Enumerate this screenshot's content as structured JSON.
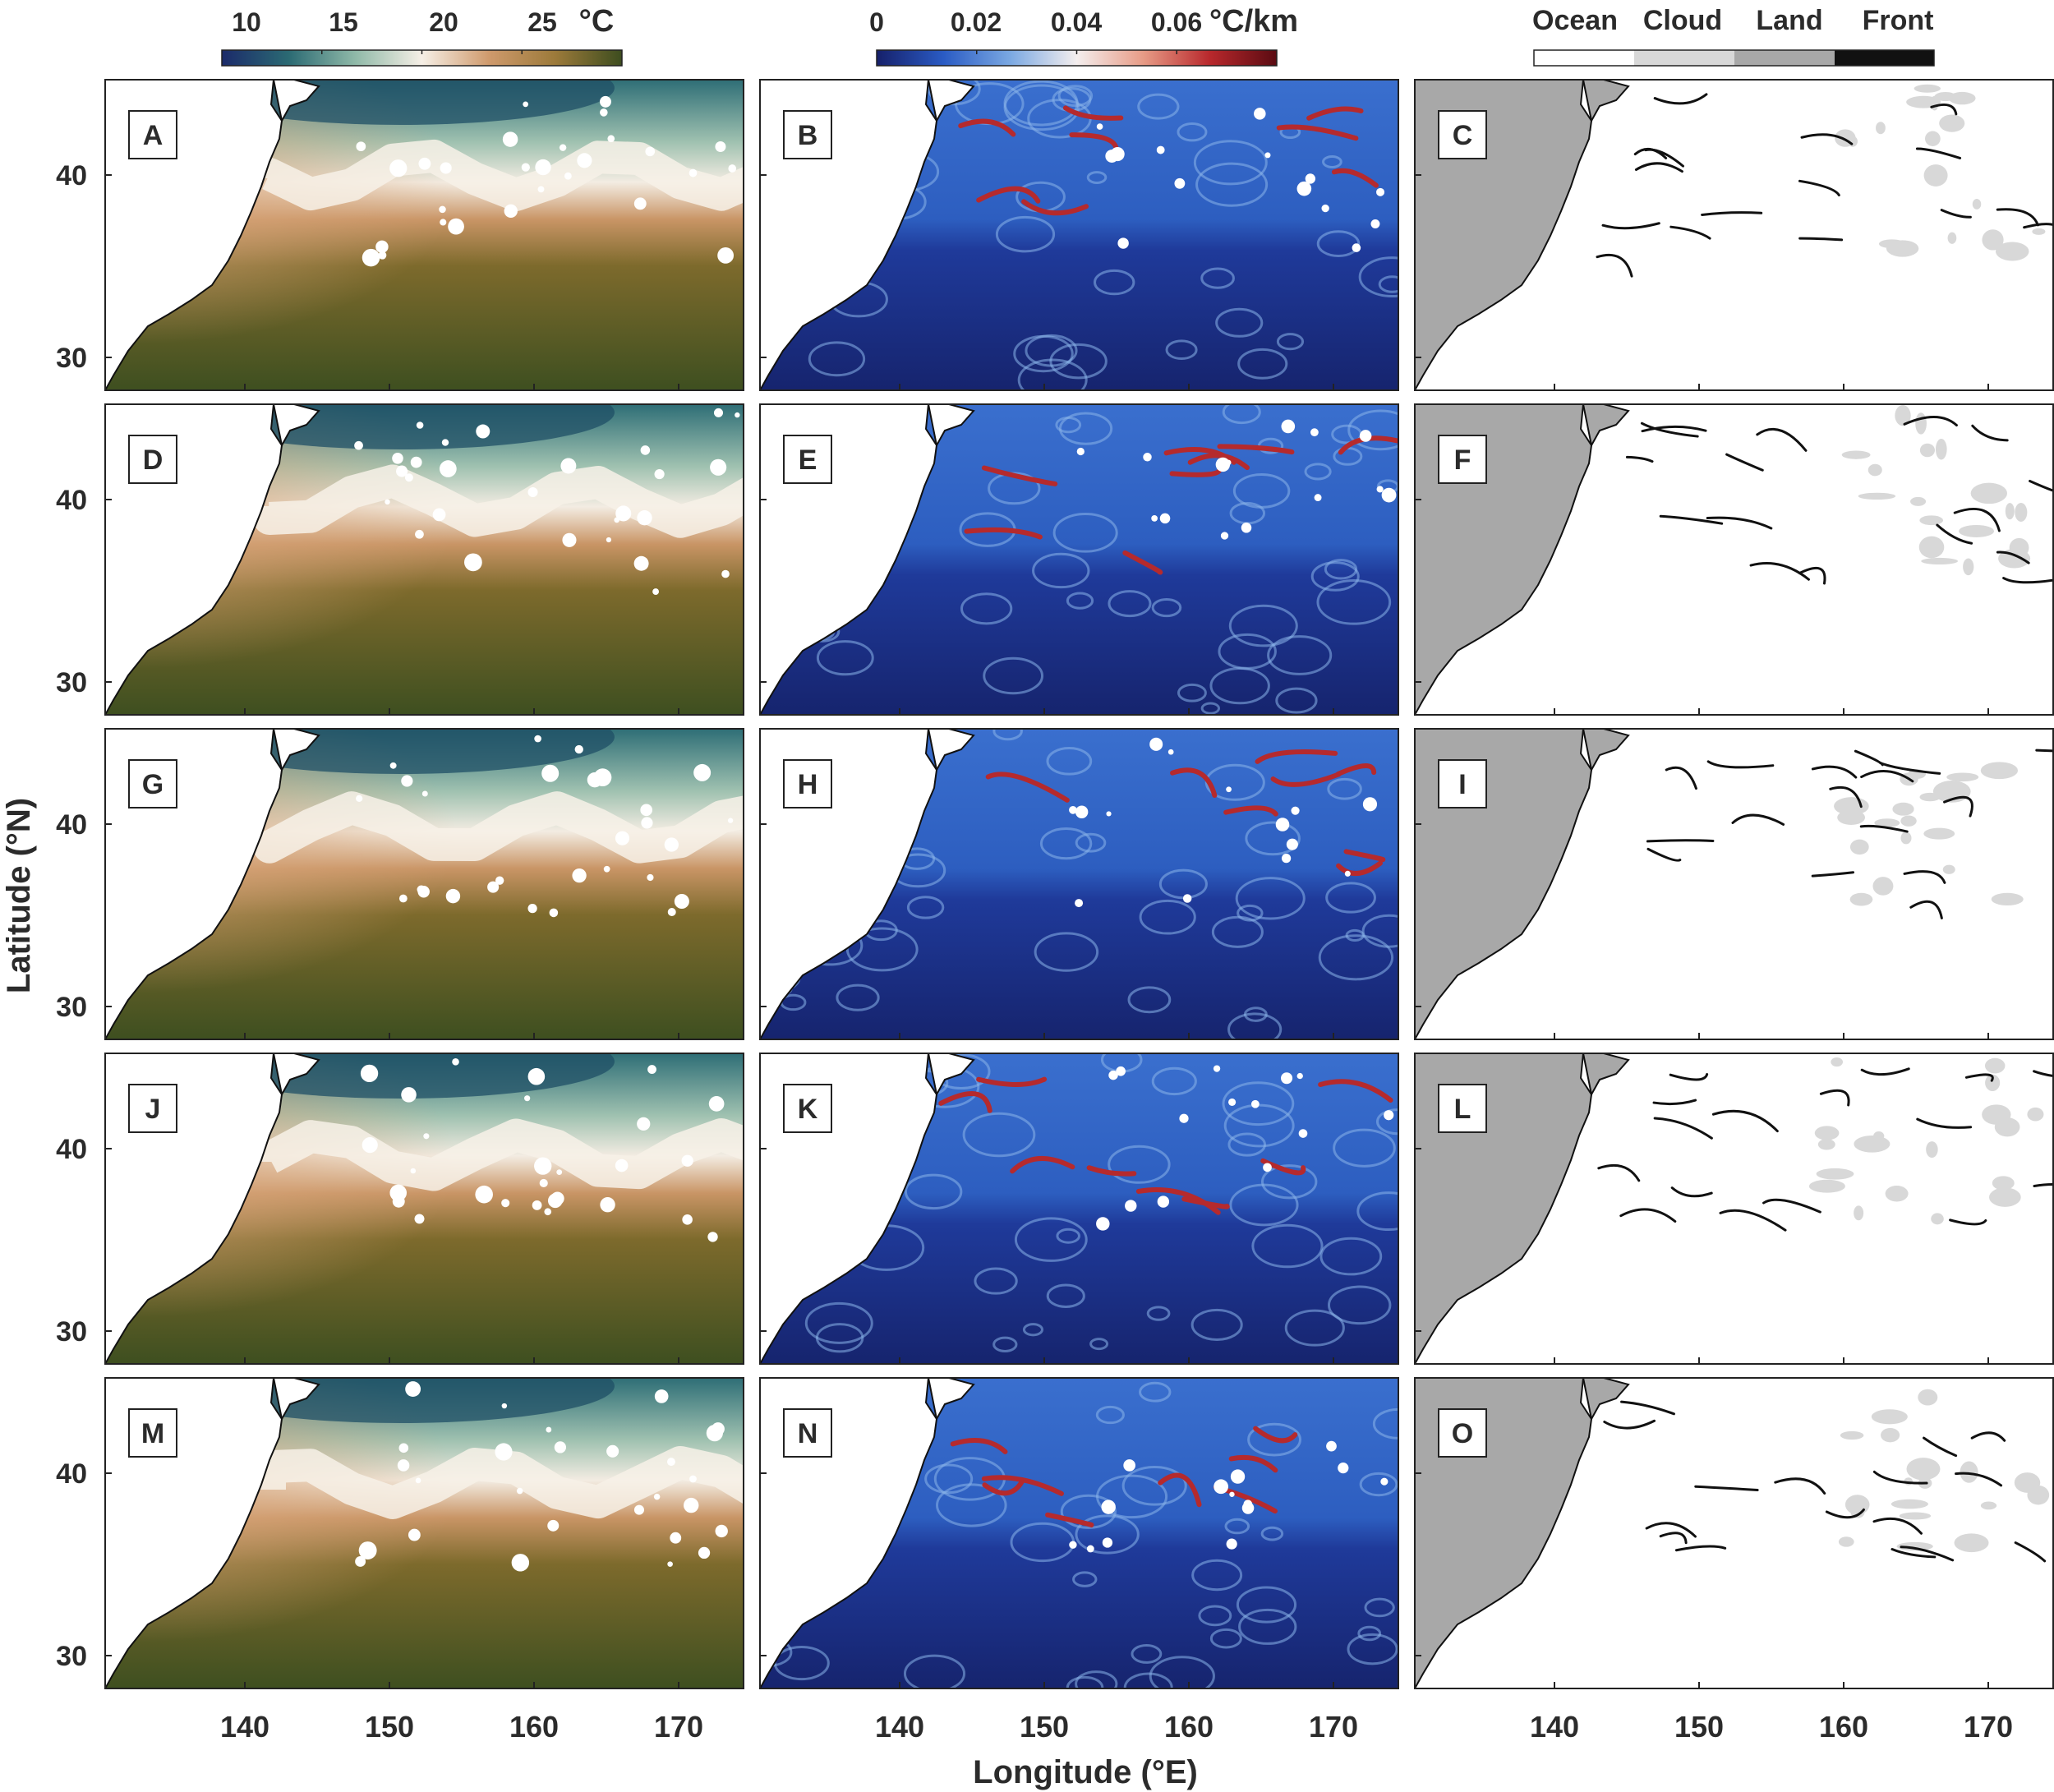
{
  "colorbars": [
    {
      "id": "sst",
      "ticks": [
        "10",
        "15",
        "20",
        "25"
      ],
      "unit": "°C",
      "colors": [
        "#1b2a6a",
        "#2b6a73",
        "#8fb9a8",
        "#f6efe6",
        "#cf9a6d",
        "#9c7a3a",
        "#3d4d1f"
      ]
    },
    {
      "id": "gradient",
      "ticks": [
        "0",
        "0.02",
        "0.04",
        "0.06"
      ],
      "unit": "°C/km",
      "colors": [
        "#16206a",
        "#2a5bc4",
        "#7aa8e2",
        "#f4eeee",
        "#e79b86",
        "#b8282c",
        "#5a0b12"
      ]
    },
    {
      "id": "mask",
      "categories": [
        {
          "label": "Ocean",
          "color": "#ffffff"
        },
        {
          "label": "Cloud",
          "color": "#d8d8d8"
        },
        {
          "label": "Land",
          "color": "#a8a8a8"
        },
        {
          "label": "Front",
          "color": "#111111"
        }
      ]
    }
  ],
  "axes": {
    "ylabel": "Latitude (°N)",
    "xlabel": "Longitude (°E)",
    "yticks": [
      "40",
      "30"
    ],
    "xticks": [
      "140",
      "150",
      "160",
      "170"
    ]
  },
  "panels": [
    {
      "label": "A",
      "type": "sst"
    },
    {
      "label": "B",
      "type": "gradient"
    },
    {
      "label": "C",
      "type": "mask"
    },
    {
      "label": "D",
      "type": "sst"
    },
    {
      "label": "E",
      "type": "gradient"
    },
    {
      "label": "F",
      "type": "mask"
    },
    {
      "label": "G",
      "type": "sst"
    },
    {
      "label": "H",
      "type": "gradient"
    },
    {
      "label": "I",
      "type": "mask"
    },
    {
      "label": "J",
      "type": "sst"
    },
    {
      "label": "K",
      "type": "gradient"
    },
    {
      "label": "L",
      "type": "mask"
    },
    {
      "label": "M",
      "type": "sst"
    },
    {
      "label": "N",
      "type": "gradient"
    },
    {
      "label": "O",
      "type": "mask"
    }
  ]
}
